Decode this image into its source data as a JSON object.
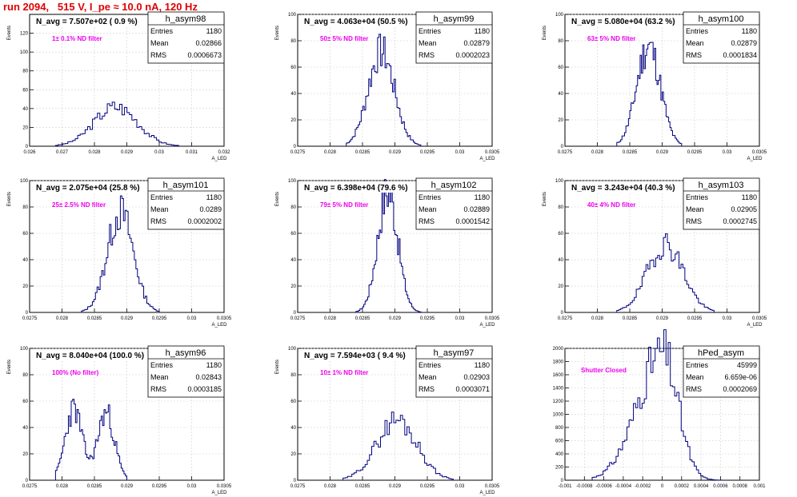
{
  "page_title": "run 2094,   515 V, I_pe ≈ 10.0 nA, 120 Hz",
  "chart_data": [
    {
      "type": "histogram",
      "name": "h_asym98",
      "navg": "N_avg = 7.507e+02 ( 0.9 %)",
      "filter": "1± 0.1% ND filter",
      "stats": {
        "Entries": "1180",
        "Mean": "0.02866",
        "RMS": "0.0006673"
      },
      "xlim": [
        0.026,
        0.032
      ],
      "ylim": [
        0,
        140
      ],
      "xticks": [
        "0.026",
        "0.027",
        "0.028",
        "0.029",
        "0.03",
        "0.031",
        "0.032"
      ],
      "yticks": [
        "0",
        "20",
        "40",
        "60",
        "80",
        "100",
        "120"
      ],
      "ylabel": "Events",
      "xlabel": "A_LED",
      "mean": 0.02866,
      "sigma": 0.0006673,
      "peak": 42,
      "bins": 50,
      "lo": 0.0268,
      "hi": 0.0306,
      "seed": 3
    },
    {
      "type": "histogram",
      "name": "h_asym99",
      "navg": "N_avg = 4.063e+04 (50.5 %)",
      "filter": "50± 5% ND filter",
      "stats": {
        "Entries": "1180",
        "Mean": "0.02879",
        "RMS": "0.0002023"
      },
      "xlim": [
        0.0275,
        0.0305
      ],
      "ylim": [
        0,
        100
      ],
      "xticks": [
        "0.0275",
        "0.028",
        "0.0285",
        "0.029",
        "0.0295",
        "0.03",
        "0.0305"
      ],
      "yticks": [
        "0",
        "20",
        "40",
        "60",
        "80",
        "100"
      ],
      "ylabel": "Events",
      "xlabel": "A_LED",
      "mean": 0.02879,
      "sigma": 0.0002023,
      "peak": 72,
      "bins": 50,
      "lo": 0.02825,
      "hi": 0.0294,
      "seed": 7
    },
    {
      "type": "histogram",
      "name": "h_asym100",
      "navg": "N_avg = 5.080e+04 (63.2 %)",
      "filter": "63± 5% ND filter",
      "stats": {
        "Entries": "1180",
        "Mean": "0.02879",
        "RMS": "0.0001834"
      },
      "xlim": [
        0.0275,
        0.0305
      ],
      "ylim": [
        0,
        100
      ],
      "xticks": [
        "0.0275",
        "0.028",
        "0.0285",
        "0.029",
        "0.0295",
        "0.03",
        "0.0305"
      ],
      "yticks": [
        "0",
        "20",
        "40",
        "60",
        "80",
        "100"
      ],
      "ylabel": "Events",
      "xlabel": "A_LED",
      "mean": 0.02879,
      "sigma": 0.0001834,
      "peak": 76,
      "bins": 50,
      "lo": 0.0283,
      "hi": 0.0293,
      "seed": 11
    },
    {
      "type": "histogram",
      "name": "h_asym101",
      "navg": "N_avg = 2.075e+04 (25.8 %)",
      "filter": "25± 2.5% ND filter",
      "stats": {
        "Entries": "1180",
        "Mean": "0.0289",
        "RMS": "0.0002002"
      },
      "xlim": [
        0.0275,
        0.0305
      ],
      "ylim": [
        0,
        100
      ],
      "xticks": [
        "0.0275",
        "0.028",
        "0.0285",
        "0.029",
        "0.0295",
        "0.03",
        "0.0305"
      ],
      "yticks": [
        "0",
        "20",
        "40",
        "60",
        "80",
        "100"
      ],
      "ylabel": "Events",
      "xlabel": "A_LED",
      "mean": 0.0289,
      "sigma": 0.0002002,
      "peak": 76,
      "bins": 50,
      "lo": 0.0283,
      "hi": 0.0295,
      "seed": 13
    },
    {
      "type": "histogram",
      "name": "h_asym102",
      "navg": "N_avg = 6.398e+04 (79.6 %)",
      "filter": "79± 5% ND filter",
      "stats": {
        "Entries": "1180",
        "Mean": "0.02889",
        "RMS": "0.0001542"
      },
      "xlim": [
        0.0275,
        0.0305
      ],
      "ylim": [
        0,
        100
      ],
      "xticks": [
        "0.0275",
        "0.028",
        "0.0285",
        "0.029",
        "0.0295",
        "0.03",
        "0.0305"
      ],
      "yticks": [
        "0",
        "20",
        "40",
        "60",
        "80",
        "100"
      ],
      "ylabel": "Events",
      "xlabel": "A_LED",
      "mean": 0.02889,
      "sigma": 0.0001542,
      "peak": 92,
      "bins": 50,
      "lo": 0.0284,
      "hi": 0.0294,
      "seed": 17
    },
    {
      "type": "histogram",
      "name": "h_asym103",
      "navg": "N_avg = 3.243e+04 (40.3 %)",
      "filter": "40± 4% ND filter",
      "stats": {
        "Entries": "1180",
        "Mean": "0.02905",
        "RMS": "0.0002745"
      },
      "xlim": [
        0.0275,
        0.0305
      ],
      "ylim": [
        0,
        100
      ],
      "xticks": [
        "0.0275",
        "0.028",
        "0.0285",
        "0.029",
        "0.0295",
        "0.03",
        "0.0305"
      ],
      "yticks": [
        "0",
        "20",
        "40",
        "60",
        "80",
        "100"
      ],
      "ylabel": "Events",
      "xlabel": "A_LED",
      "mean": 0.02905,
      "sigma": 0.0002745,
      "peak": 52,
      "bins": 50,
      "lo": 0.0283,
      "hi": 0.0298,
      "seed": 19
    },
    {
      "type": "histogram",
      "name": "h_asym96",
      "navg": "N_avg = 8.040e+04 (100.0 %)",
      "filter": "100% (No filter)",
      "stats": {
        "Entries": "1180",
        "Mean": "0.02843",
        "RMS": "0.0003185"
      },
      "xlim": [
        0.0275,
        0.0305
      ],
      "ylim": [
        0,
        100
      ],
      "xticks": [
        "0.0275",
        "0.028",
        "0.0285",
        "0.029",
        "0.0295",
        "0.03",
        "0.0305"
      ],
      "yticks": [
        "0",
        "20",
        "40",
        "60",
        "80",
        "100"
      ],
      "ylabel": "Events",
      "xlabel": "A_LED",
      "mean": 0.02843,
      "sigma": 0.0003185,
      "peak": 54,
      "bins": 50,
      "lo": 0.0279,
      "hi": 0.029,
      "seed": 23,
      "bimodal": true
    },
    {
      "type": "histogram",
      "name": "h_asym97",
      "navg": "N_avg = 7.594e+03 ( 9.4 %)",
      "filter": "10± 1% ND filter",
      "stats": {
        "Entries": "1180",
        "Mean": "0.02903",
        "RMS": "0.0003071"
      },
      "xlim": [
        0.0275,
        0.0305
      ],
      "ylim": [
        0,
        100
      ],
      "xticks": [
        "0.0275",
        "0.028",
        "0.0285",
        "0.029",
        "0.0295",
        "0.03",
        "0.0305"
      ],
      "yticks": [
        "0",
        "20",
        "40",
        "60",
        "80",
        "100"
      ],
      "ylabel": "Events",
      "xlabel": "A_LED",
      "mean": 0.02903,
      "sigma": 0.0003071,
      "peak": 46,
      "bins": 50,
      "lo": 0.0282,
      "hi": 0.0299,
      "seed": 29
    },
    {
      "type": "histogram",
      "name": "hPed_asym",
      "navg": "",
      "filter": "Shutter Closed",
      "stats": {
        "Entries": "45999",
        "Mean": "6.659e-06",
        "RMS": "0.0002069"
      },
      "xlim": [
        -0.001,
        0.001
      ],
      "ylim": [
        0,
        2000
      ],
      "xticks": [
        "-0.001",
        "-0.0008",
        "-0.0006",
        "-0.0004",
        "-0.0002",
        "0",
        "0.0002",
        "0.0004",
        "0.0006",
        "0.0008",
        "0.001"
      ],
      "yticks": [
        "0",
        "200",
        "400",
        "600",
        "800",
        "1000",
        "1200",
        "1400",
        "1600",
        "1800",
        "2000"
      ],
      "ylabel": "",
      "xlabel": "",
      "mean": 6.659e-06,
      "sigma": 0.0002069,
      "peak": 1940,
      "bins": 60,
      "lo": -0.00072,
      "hi": 0.00062,
      "seed": 31,
      "skew": true
    }
  ],
  "colors": {
    "title": "#e00000",
    "line": "#000080",
    "filter_text": "#ee00ee",
    "axis": "#000000",
    "grid": "#d0d0d0"
  }
}
